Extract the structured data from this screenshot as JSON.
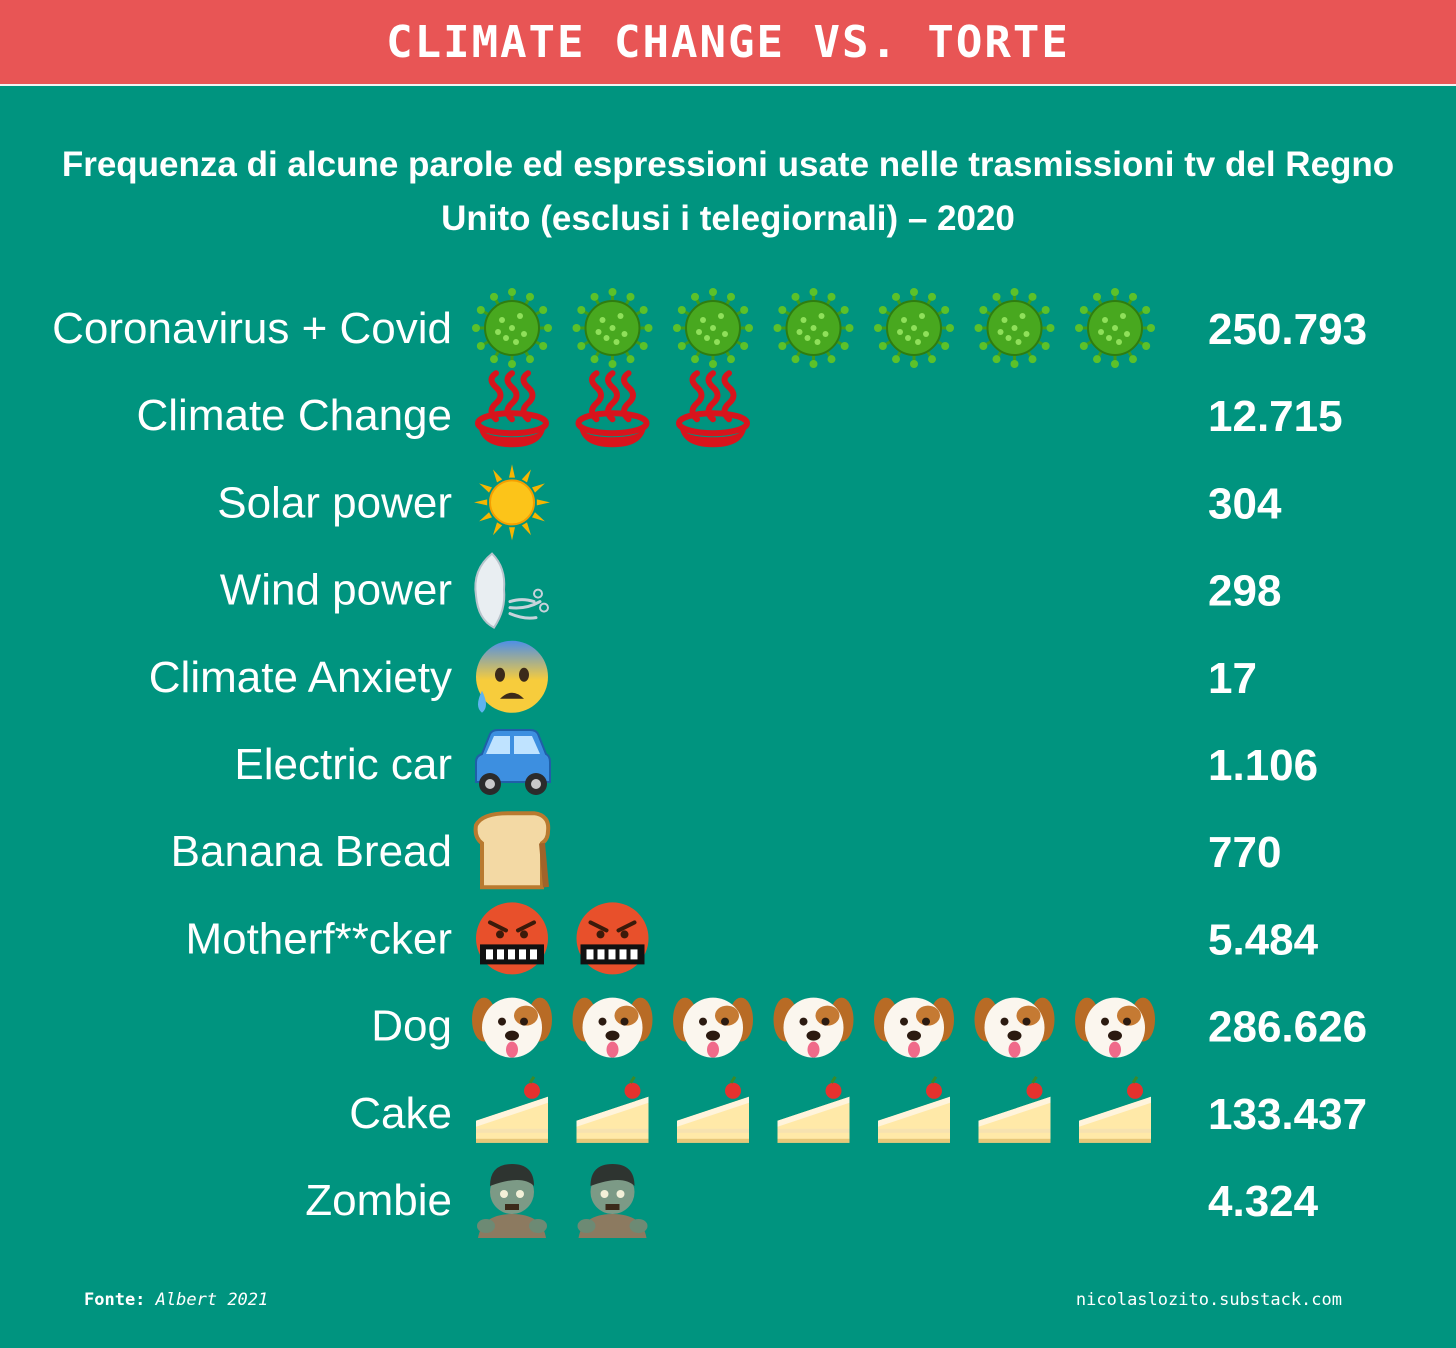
{
  "header": {
    "title": "CLIMATE CHANGE VS. TORTE"
  },
  "chart_data": {
    "type": "pictogram",
    "title": "Frequenza di alcune parole ed espressioni usate nelle trasmissioni tv del Regno Unito (esclusi i telegiornali) – 2020",
    "rows": [
      {
        "label": "Coronavirus + Covid",
        "value": 250793,
        "value_label": "250.793",
        "icon": "virus-icon",
        "icon_count": 7
      },
      {
        "label": "Climate Change",
        "value": 12715,
        "value_label": "12.715",
        "icon": "hot-springs-icon",
        "icon_count": 3
      },
      {
        "label": "Solar power",
        "value": 304,
        "value_label": "304",
        "icon": "sun-icon",
        "icon_count": 1
      },
      {
        "label": "Wind power",
        "value": 298,
        "value_label": "298",
        "icon": "wind-face-icon",
        "icon_count": 1
      },
      {
        "label": "Climate Anxiety",
        "value": 17,
        "value_label": "17",
        "icon": "anxious-face-icon",
        "icon_count": 1
      },
      {
        "label": "Electric car",
        "value": 1106,
        "value_label": "1.106",
        "icon": "car-icon",
        "icon_count": 1
      },
      {
        "label": "Banana Bread",
        "value": 770,
        "value_label": "770",
        "icon": "bread-icon",
        "icon_count": 1
      },
      {
        "label": "Motherf**cker",
        "value": 5484,
        "value_label": "5.484",
        "icon": "cursing-face-icon",
        "icon_count": 2
      },
      {
        "label": "Dog",
        "value": 286626,
        "value_label": "286.626",
        "icon": "dog-face-icon",
        "icon_count": 7
      },
      {
        "label": "Cake",
        "value": 133437,
        "value_label": "133.437",
        "icon": "cake-slice-icon",
        "icon_count": 7
      },
      {
        "label": "Zombie",
        "value": 4324,
        "value_label": "4.324",
        "icon": "zombie-icon",
        "icon_count": 2
      }
    ]
  },
  "footer": {
    "source_label": "Fonte:",
    "source_value": "Albert 2021",
    "credit": "nicolaslozito.substack.com"
  },
  "colors": {
    "background": "#00947f",
    "banner": "#e85555",
    "text": "#ffffff"
  }
}
